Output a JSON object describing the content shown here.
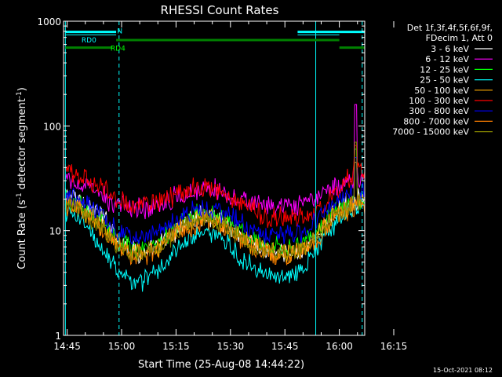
{
  "chart_data": {
    "type": "line",
    "title": "RHESSI Count Rates",
    "xlabel": "Start Time (25-Aug-08 14:44:22)",
    "ylabel_parts": [
      "Count Rate (s",
      "-1",
      " detector segment",
      "-1",
      ")"
    ],
    "y_scale": "log",
    "ylim": [
      1,
      1000
    ],
    "xlim_minutes": [
      -1,
      82
    ],
    "grid": false,
    "legend_position": "right",
    "x_ticks": [
      {
        "label": "14:45",
        "minute": 0
      },
      {
        "label": "15:00",
        "minute": 15
      },
      {
        "label": "15:15",
        "minute": 30
      },
      {
        "label": "15:30",
        "minute": 45
      },
      {
        "label": "15:45",
        "minute": 60
      },
      {
        "label": "16:00",
        "minute": 75
      },
      {
        "label": "16:15",
        "minute": 90
      }
    ],
    "y_ticks": [
      {
        "label": "1",
        "value": 1
      },
      {
        "label": "10",
        "value": 10
      },
      {
        "label": "100",
        "value": 100
      },
      {
        "label": "1000",
        "value": 1000
      }
    ],
    "legend_header": [
      "Det 1f,3f,4f,5f,6f,9f,",
      "FDecim 1, Att 0"
    ],
    "x_minutes": [
      0,
      3,
      6,
      9,
      12,
      15,
      18,
      21,
      24,
      27,
      30,
      33,
      36,
      39,
      42,
      45,
      48,
      51,
      54,
      57,
      60,
      63,
      66,
      69,
      72,
      75,
      78,
      81
    ],
    "series": [
      {
        "name": "3 - 6 keV",
        "color": "#ffffff",
        "values": [
          22,
          20,
          17,
          14,
          11,
          8,
          6.5,
          6,
          6.5,
          8,
          10,
          12,
          13.5,
          14,
          13,
          11,
          9,
          7.5,
          6.5,
          6,
          6,
          6.2,
          7,
          9,
          12,
          16,
          19,
          21
        ],
        "spike": null
      },
      {
        "name": "6 - 12 keV",
        "color": "#ff00ff",
        "values": [
          30,
          28,
          25,
          22,
          19,
          17,
          16.5,
          16.5,
          17,
          19,
          21,
          23,
          25,
          25.5,
          24,
          22,
          20,
          18,
          17,
          16.5,
          16.5,
          16.5,
          18,
          21,
          24,
          27,
          30,
          32
        ],
        "spike": {
          "minute": 79.5,
          "value": 160
        }
      },
      {
        "name": "12 - 25 keV",
        "color": "#00ff00",
        "values": [
          19,
          17.5,
          15,
          12.5,
          10,
          8,
          7,
          7,
          7.5,
          9,
          11,
          12.5,
          14,
          14.5,
          13.5,
          12,
          10,
          8.5,
          7.5,
          7,
          7,
          7.2,
          8,
          10,
          13,
          16,
          18,
          20
        ],
        "spike": {
          "minute": 79.5,
          "value": 60
        }
      },
      {
        "name": "25 - 50 keV",
        "color": "#00ffff",
        "values": [
          15,
          13,
          10,
          7.5,
          5,
          3.8,
          3.3,
          3.4,
          4,
          5,
          6.5,
          8,
          9,
          9.3,
          8.5,
          7,
          5.5,
          4.5,
          4,
          3.8,
          3.8,
          4,
          5,
          7,
          10,
          13,
          15,
          17
        ],
        "spike": null
      },
      {
        "name": "50 - 100 keV",
        "color": "#ffaa00",
        "values": [
          18,
          16.5,
          14,
          11.5,
          9,
          7,
          6,
          6,
          6.5,
          8,
          10,
          11.5,
          13,
          13.5,
          12.5,
          11,
          9,
          7.5,
          6.5,
          6,
          6,
          6.2,
          7,
          9,
          12,
          15,
          17,
          19
        ],
        "spike": {
          "minute": 79.5,
          "value": 45
        }
      },
      {
        "name": "100 - 300 keV",
        "color": "#ff0000",
        "values": [
          37,
          34,
          30,
          26,
          22,
          19,
          18,
          18,
          18.5,
          20,
          22.5,
          24,
          25.5,
          25,
          23.5,
          21,
          18,
          16,
          14,
          13.5,
          13.2,
          13,
          13.5,
          15,
          18,
          26,
          33,
          38
        ],
        "spike": {
          "minute": 79.5,
          "value": 65
        }
      },
      {
        "name": "300 - 800 keV",
        "color": "#0000ff",
        "values": [
          21,
          19.5,
          17,
          14,
          11.5,
          9.5,
          9,
          9,
          9.5,
          11,
          13,
          14.5,
          16,
          16,
          15,
          13.5,
          11.5,
          10,
          9.2,
          9,
          9,
          9.2,
          10,
          12.5,
          15.5,
          19,
          21.5,
          23
        ],
        "spike": {
          "minute": 79.5,
          "value": 50
        }
      },
      {
        "name": "800 - 7000 keV",
        "color": "#ff8000",
        "values": [
          17,
          15.5,
          13,
          10.5,
          8,
          6.5,
          5.8,
          5.8,
          6.3,
          7.5,
          9.5,
          11,
          12,
          12.5,
          11.5,
          10,
          8.5,
          7.2,
          6.2,
          5.8,
          5.8,
          6,
          6.8,
          8.5,
          11.5,
          14.5,
          16.5,
          18
        ],
        "spike": null
      },
      {
        "name": "7000 - 15000 keV",
        "color": "#808000",
        "values": [
          17.5,
          16,
          13.5,
          11,
          8.5,
          6.8,
          6,
          6,
          6.5,
          7.8,
          9.8,
          11.3,
          12.5,
          13,
          12,
          10.5,
          8.8,
          7.4,
          6.4,
          6,
          6,
          6.1,
          7,
          8.8,
          11.8,
          15,
          17,
          18.5
        ],
        "spike": {
          "minute": 79.5,
          "value": 70
        }
      }
    ],
    "annotations": {
      "lines": [
        {
          "color": "#00ffff",
          "points": [
            [
              -0.5,
              790
            ],
            [
              13.5,
              790
            ]
          ],
          "width": 3
        },
        {
          "color": "#00ffff",
          "points": [
            [
              -0.5,
              740
            ],
            [
              13.5,
              740
            ]
          ],
          "width": 1
        },
        {
          "color": "#00ffff",
          "points": [
            [
              63.5,
              740
            ],
            [
              75,
              740
            ]
          ],
          "width": 1
        },
        {
          "color": "#00ffff",
          "points": [
            [
              63.5,
              790
            ],
            [
              82,
              790
            ]
          ],
          "width": 3
        },
        {
          "color": "#008000",
          "points": [
            [
              13.5,
              660
            ],
            [
              75,
              660
            ]
          ],
          "width": 3
        },
        {
          "color": "#008000",
          "points": [
            [
              -0.5,
              560
            ],
            [
              12.5,
              560
            ]
          ],
          "width": 3
        },
        {
          "color": "#008000",
          "points": [
            [
              75,
              560
            ],
            [
              82,
              560
            ]
          ],
          "width": 3
        }
      ],
      "labels": [
        {
          "text": "N",
          "color": "#00ffff",
          "minute": 14.5,
          "value": 820
        },
        {
          "text": "RD0",
          "color": "#00ffff",
          "minute": 6,
          "value": 670
        },
        {
          "text": "RD4",
          "color": "#00ff00",
          "minute": 14,
          "value": 560
        }
      ],
      "vlines": [
        {
          "minute": -0.5,
          "color": "#00ffff",
          "style": "solid"
        },
        {
          "minute": 14.3,
          "color": "#00ffff",
          "style": "dashed"
        },
        {
          "minute": 68.5,
          "color": "#00ffff",
          "style": "solid"
        },
        {
          "minute": 81.3,
          "color": "#00ffff",
          "style": "dashed"
        }
      ]
    }
  },
  "footer": {
    "timestamp": "15-Oct-2021 08:12"
  }
}
